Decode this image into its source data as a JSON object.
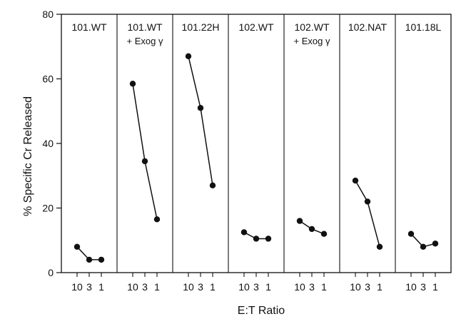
{
  "chart_data": {
    "type": "line",
    "ylabel": "% Specific Cr Released",
    "xlabel": "E:T Ratio",
    "ylim": [
      0,
      80
    ],
    "yticks": [
      "0",
      "20",
      "40",
      "60",
      "80"
    ],
    "x_categories": [
      "10",
      "3",
      "1"
    ],
    "panels": [
      {
        "title_line1": "101.WT",
        "title_line2": "",
        "values": [
          8,
          4,
          4
        ]
      },
      {
        "title_line1": "101.WT",
        "title_line2": "+ Exog γ",
        "values": [
          58.5,
          34.5,
          16.5
        ]
      },
      {
        "title_line1": "101.22H",
        "title_line2": "",
        "values": [
          67,
          51,
          27
        ]
      },
      {
        "title_line1": "102.WT",
        "title_line2": "",
        "values": [
          12.5,
          10.5,
          10.5
        ]
      },
      {
        "title_line1": "102.WT",
        "title_line2": "+ Exog γ",
        "values": [
          16,
          13.5,
          12
        ]
      },
      {
        "title_line1": "102.NAT",
        "title_line2": "",
        "values": [
          28.5,
          22,
          8
        ]
      },
      {
        "title_line1": "101.18L",
        "title_line2": "",
        "values": [
          12,
          8,
          9
        ]
      }
    ]
  }
}
